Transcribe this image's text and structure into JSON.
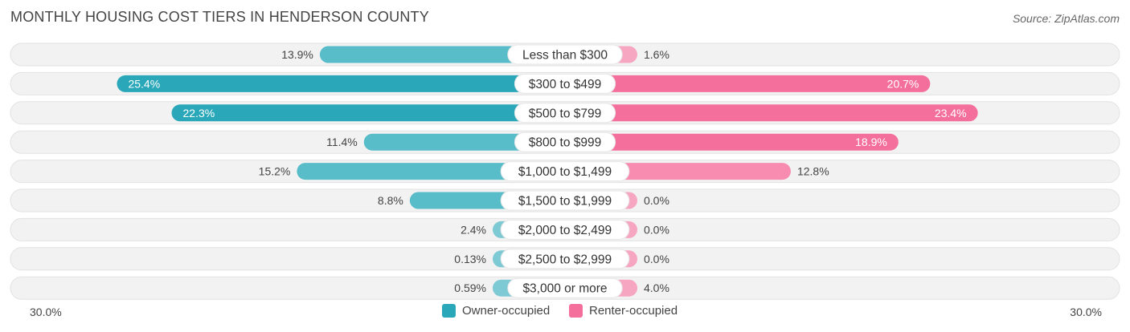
{
  "title": "MONTHLY HOUSING COST TIERS IN HENDERSON COUNTY",
  "source": "Source: ZipAtlas.com",
  "colors": {
    "owner": "#2aa7b8",
    "owner_light": "#7ecad4",
    "renter": "#f46f9b",
    "renter_light": "#f7a6c1",
    "track": "#f0f0f0"
  },
  "chart_data": {
    "type": "bar",
    "orientation": "horizontal-diverging",
    "categories": [
      "Less than $300",
      "$300 to $499",
      "$500 to $799",
      "$800 to $999",
      "$1,000 to $1,499",
      "$1,500 to $1,999",
      "$2,000 to $2,499",
      "$2,500 to $2,999",
      "$3,000 or more"
    ],
    "series": [
      {
        "name": "Owner-occupied",
        "values": [
          13.9,
          25.4,
          22.3,
          11.4,
          15.2,
          8.8,
          2.4,
          0.13,
          0.59
        ],
        "labels": [
          "13.9%",
          "25.4%",
          "22.3%",
          "11.4%",
          "15.2%",
          "8.8%",
          "2.4%",
          "0.13%",
          "0.59%"
        ]
      },
      {
        "name": "Renter-occupied",
        "values": [
          1.6,
          20.7,
          23.4,
          18.9,
          12.8,
          0.0,
          0.0,
          0.0,
          4.0
        ],
        "labels": [
          "1.6%",
          "20.7%",
          "23.4%",
          "18.9%",
          "12.8%",
          "0.0%",
          "0.0%",
          "0.0%",
          "4.0%"
        ]
      }
    ],
    "xlim": [
      -30,
      30
    ],
    "axis_left_label": "30.0%",
    "axis_right_label": "30.0%",
    "legend_position": "bottom-center"
  }
}
